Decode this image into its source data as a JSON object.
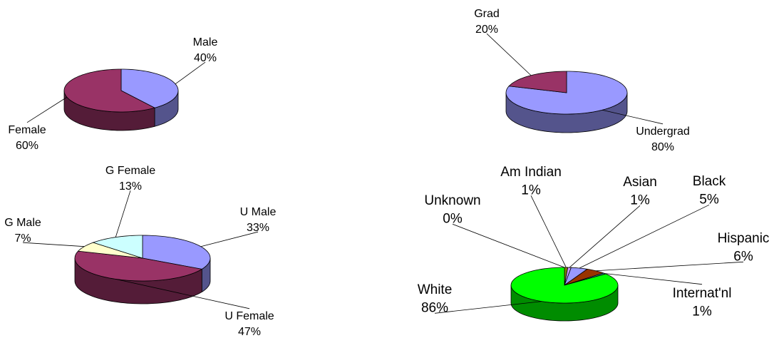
{
  "chart_data": [
    {
      "type": "pie",
      "categories": [
        "Male",
        "Female"
      ],
      "values": [
        40,
        60
      ],
      "value_labels": [
        "40%",
        "60%"
      ],
      "colors": [
        "#9999ff",
        "#993366"
      ]
    },
    {
      "type": "pie",
      "categories": [
        "Undergrad",
        "Grad"
      ],
      "values": [
        80,
        20
      ],
      "value_labels": [
        "80%",
        "20%"
      ],
      "colors": [
        "#9999ff",
        "#993366"
      ]
    },
    {
      "type": "pie",
      "categories": [
        "U Male",
        "U Female",
        "G Male",
        "G Female"
      ],
      "values": [
        33,
        47,
        7,
        13
      ],
      "value_labels": [
        "33%",
        "47%",
        "7%",
        "13%"
      ],
      "colors": [
        "#9999ff",
        "#993366",
        "#ffffcc",
        "#ccffff"
      ]
    },
    {
      "type": "pie",
      "categories": [
        "Unknown",
        "Am Indian",
        "Asian",
        "Black",
        "Hispanic",
        "Internat'nl",
        "White"
      ],
      "values": [
        0,
        1,
        1,
        5,
        6,
        1,
        86
      ],
      "value_labels": [
        "0%",
        "1%",
        "1%",
        "5%",
        "6%",
        "1%",
        "86%"
      ],
      "colors": [
        "#993333",
        "#808000",
        "#cc99ff",
        "#9999ff",
        "#993300",
        "#339999",
        "#00ff00"
      ]
    }
  ]
}
